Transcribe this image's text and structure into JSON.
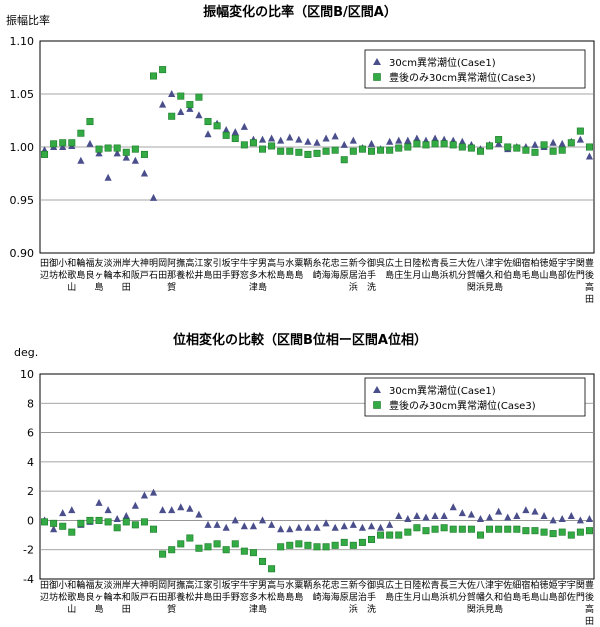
{
  "chart_data": [
    {
      "type": "scatter",
      "title": "振幅変化の比率（区間B/区間A）",
      "ylabel": "振幅比率",
      "ylim": [
        0.9,
        1.1
      ],
      "yticks": [
        "0.90",
        "0.95",
        "1.00",
        "1.05",
        "1.10"
      ],
      "grid": true,
      "legend_position": "top-right",
      "categories": [
        "田辺",
        "御坊",
        "小松",
        "和歌山",
        "輪島",
        "福良",
        "友ヶ島",
        "淡輪",
        "洲本",
        "岸和田",
        "大阪",
        "神戸",
        "明石",
        "岡田",
        "阿那賀",
        "撫養",
        "高松",
        "江井",
        "家島",
        "引田",
        "坂手",
        "宇野",
        "牛窓",
        "宇多津",
        "男木島",
        "高松",
        "与島",
        "水島",
        "粟島",
        "鞆",
        "糸崎",
        "花海",
        "忠海",
        "三原",
        "新居浜",
        "今治",
        "御手洗",
        "呉",
        "広島",
        "土庄",
        "日生",
        "陸月",
        "松山",
        "青島",
        "長浜",
        "三机",
        "大分",
        "佐賀関",
        "八幡浜",
        "津久見",
        "宇和島",
        "佐伯",
        "細島",
        "宿毛",
        "柏島",
        "徳山",
        "姫島",
        "宇部",
        "宇佐",
        "関門",
        "豊後高田"
      ],
      "series": [
        {
          "name": "30cm異常潮位(Case1)",
          "color": "#4a4f8c",
          "values": [
            0.997,
            1.0,
            1.0,
            1.001,
            0.987,
            1.003,
            0.994,
            0.971,
            0.994,
            0.99,
            0.987,
            0.975,
            0.952,
            1.04,
            1.05,
            1.033,
            1.036,
            1.03,
            1.012,
            1.022,
            1.016,
            1.014,
            1.019,
            1.007,
            1.007,
            1.008,
            1.006,
            1.009,
            1.007,
            1.005,
            1.004,
            1.008,
            1.01,
            1.002,
            1.006,
            0.999,
            1.003,
            0.998,
            1.005,
            1.006,
            1.006,
            1.008,
            1.006,
            1.008,
            1.007,
            1.006,
            1.005,
            1.002,
            0.998,
            1.002,
            1.003,
            0.998,
            1.0,
            1.0,
            1.002,
            1.0,
            1.004,
            1.003,
            1.005,
            1.007,
            0.991
          ]
        },
        {
          "name": "豊後のみ30cm異常潮位(Case3)",
          "color": "#33aa44",
          "values": [
            0.993,
            1.003,
            1.004,
            1.004,
            1.013,
            1.024,
            0.998,
            0.999,
            0.999,
            0.995,
            0.998,
            0.993,
            1.067,
            1.073,
            1.029,
            1.048,
            1.04,
            1.047,
            1.024,
            1.02,
            1.011,
            1.008,
            1.002,
            1.004,
            0.998,
            1.001,
            0.996,
            0.996,
            0.995,
            0.993,
            0.994,
            0.996,
            0.997,
            0.988,
            0.996,
            0.998,
            0.996,
            0.997,
            0.997,
            0.999,
            1.0,
            1.003,
            1.002,
            1.003,
            1.003,
            1.002,
            1.0,
            0.999,
            0.996,
            1.001,
            1.007,
            1.0,
            0.999,
            0.997,
            0.995,
            1.002,
            0.996,
            0.997,
            1.004,
            1.015,
            1.0
          ]
        }
      ]
    },
    {
      "type": "scatter",
      "title": "位相変化の比較（区間B位相ー区間A位相）",
      "ylabel": "deg.",
      "ylim": [
        -4,
        10
      ],
      "yticks": [
        "-4",
        "-2",
        "0",
        "2",
        "4",
        "6",
        "8",
        "10"
      ],
      "grid": true,
      "legend_position": "top-right",
      "categories": [
        "田辺",
        "御坊",
        "小松",
        "和歌山",
        "輪島",
        "福良",
        "友ヶ島",
        "淡輪",
        "洲本",
        "岸和田",
        "大阪",
        "神戸",
        "明石",
        "岡田",
        "阿那賀",
        "撫養",
        "高松",
        "江井",
        "家島",
        "引田",
        "坂手",
        "宇野",
        "牛窓",
        "宇多津",
        "男木島",
        "高松",
        "与島",
        "水島",
        "粟島",
        "鞆",
        "糸崎",
        "花海",
        "忠海",
        "三原",
        "新居浜",
        "今治",
        "御手洗",
        "呉",
        "広島",
        "土庄",
        "日生",
        "陸月",
        "松山",
        "青島",
        "長浜",
        "三机",
        "大分",
        "佐賀関",
        "八幡浜",
        "津久見",
        "宇和島",
        "佐伯",
        "細島",
        "宿毛",
        "柏島",
        "徳山",
        "姫島",
        "宇部",
        "宇佐",
        "関門",
        "豊後高田"
      ],
      "series": [
        {
          "name": "30cm異常潮位(Case1)",
          "color": "#4a4f8c",
          "values": [
            0.0,
            -0.6,
            0.5,
            0.7,
            -0.3,
            -0.1,
            1.2,
            0.7,
            0.1,
            0.3,
            1.0,
            1.7,
            1.9,
            0.7,
            0.7,
            0.9,
            0.8,
            0.4,
            -0.3,
            -0.3,
            -0.5,
            0.0,
            -0.4,
            -0.4,
            0.0,
            -0.3,
            -0.6,
            -0.6,
            -0.5,
            -0.5,
            -0.5,
            -0.2,
            -0.5,
            -0.4,
            -0.3,
            -0.5,
            -0.4,
            -0.5,
            -0.3,
            0.3,
            0.1,
            0.3,
            0.2,
            0.3,
            0.3,
            0.9,
            0.5,
            0.4,
            0.1,
            0.2,
            0.6,
            0.2,
            0.3,
            0.7,
            0.6,
            0.3,
            0.0,
            0.1,
            0.3,
            0.0,
            0.1
          ]
        },
        {
          "name": "豊後のみ30cm異常潮位(Case3)",
          "color": "#33aa44",
          "values": [
            -0.1,
            -0.2,
            -0.4,
            -0.8,
            -0.2,
            0.0,
            0.0,
            -0.1,
            -0.5,
            -0.1,
            -0.3,
            -0.1,
            -0.6,
            -2.3,
            -2.0,
            -1.6,
            -1.2,
            -1.9,
            -1.8,
            -1.6,
            -2.0,
            -1.6,
            -2.1,
            -2.2,
            -2.8,
            -3.3,
            -1.8,
            -1.7,
            -1.6,
            -1.7,
            -1.8,
            -1.8,
            -1.7,
            -1.5,
            -1.7,
            -1.5,
            -1.3,
            -1.0,
            -1.0,
            -1.0,
            -0.8,
            -0.5,
            -0.7,
            -0.6,
            -0.5,
            -0.6,
            -0.6,
            -0.6,
            -1.0,
            -0.6,
            -0.6,
            -0.6,
            -0.6,
            -0.7,
            -0.7,
            -0.8,
            -0.9,
            -0.8,
            -1.0,
            -0.8,
            -0.7
          ]
        }
      ]
    }
  ]
}
